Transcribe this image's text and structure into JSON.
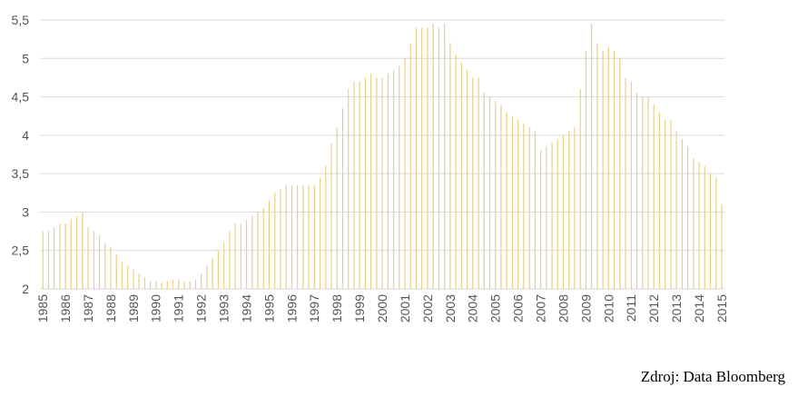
{
  "chart_data": {
    "type": "bar",
    "source": "Zdroj: Data Bloomberg",
    "color": "#e9cf8a",
    "grid": true,
    "ylim": [
      2,
      5.5
    ],
    "yticks": [
      2,
      {
        "value": 2.5,
        "label": "2,5"
      },
      3,
      {
        "value": 3.5,
        "label": "3,5"
      },
      4,
      {
        "value": 4.5,
        "label": "4,5"
      },
      5,
      {
        "value": 5.5,
        "label": "5,5"
      }
    ],
    "categories": [
      "1985",
      null,
      null,
      null,
      "1986",
      null,
      null,
      null,
      "1987",
      null,
      null,
      null,
      "1988",
      null,
      null,
      null,
      "1989",
      null,
      null,
      null,
      "1990",
      null,
      null,
      null,
      "1991",
      null,
      null,
      null,
      "1992",
      null,
      null,
      null,
      "1993",
      null,
      null,
      null,
      "1994",
      null,
      null,
      null,
      "1995",
      null,
      null,
      null,
      "1996",
      null,
      null,
      null,
      "1997",
      null,
      null,
      null,
      "1998",
      null,
      null,
      null,
      "1999",
      null,
      null,
      null,
      "2000",
      null,
      null,
      null,
      "2001",
      null,
      null,
      null,
      "2002",
      null,
      null,
      null,
      "2003",
      null,
      null,
      null,
      "2004",
      null,
      null,
      null,
      "2005",
      null,
      null,
      null,
      "2006",
      null,
      null,
      null,
      "2007",
      null,
      null,
      null,
      "2008",
      null,
      null,
      null,
      "2009",
      null,
      null,
      null,
      "2010",
      null,
      null,
      null,
      "2011",
      null,
      null,
      null,
      "2012",
      null,
      null,
      null,
      "2013",
      null,
      null,
      null,
      "2014",
      null,
      null,
      null,
      "2015"
    ],
    "values": [
      2.75,
      2.75,
      2.8,
      2.85,
      2.85,
      2.9,
      2.95,
      3.0,
      2.8,
      2.75,
      2.7,
      2.6,
      2.55,
      2.45,
      2.35,
      2.3,
      2.25,
      2.2,
      2.15,
      2.1,
      2.1,
      2.08,
      2.1,
      2.12,
      2.12,
      2.1,
      2.1,
      2.12,
      2.2,
      2.3,
      2.4,
      2.5,
      2.6,
      2.75,
      2.85,
      2.85,
      2.9,
      2.95,
      3.0,
      3.05,
      3.15,
      3.25,
      3.3,
      3.35,
      3.35,
      3.35,
      3.35,
      3.35,
      3.35,
      3.45,
      3.6,
      3.9,
      4.1,
      4.35,
      4.6,
      4.7,
      4.7,
      4.75,
      4.8,
      4.75,
      4.75,
      4.8,
      4.85,
      4.9,
      5.0,
      5.2,
      5.4,
      5.4,
      5.4,
      5.45,
      5.4,
      5.45,
      5.2,
      5.05,
      4.95,
      4.85,
      4.75,
      4.75,
      4.55,
      4.5,
      4.45,
      4.4,
      4.3,
      4.25,
      4.2,
      4.15,
      4.1,
      4.05,
      3.8,
      3.85,
      3.9,
      3.95,
      4.0,
      4.05,
      4.1,
      4.6,
      5.1,
      5.45,
      5.2,
      5.1,
      5.15,
      5.1,
      5.0,
      4.75,
      4.7,
      4.55,
      4.5,
      4.5,
      4.4,
      4.3,
      4.2,
      4.2,
      4.05,
      3.95,
      3.85,
      3.7,
      3.65,
      3.6,
      3.5,
      3.45,
      3.1
    ]
  }
}
